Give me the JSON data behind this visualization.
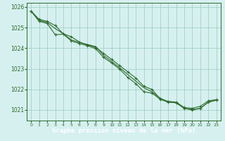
{
  "title": "Graphe pression niveau de la mer (hPa)",
  "bg_color": "#d6f0f0",
  "footer_bg": "#2d6b2d",
  "footer_text_color": "#ffffff",
  "grid_color": "#99ccbb",
  "line_color": "#2d6b2d",
  "marker_color": "#2d6b2d",
  "x_ticks": [
    0,
    1,
    2,
    3,
    4,
    5,
    6,
    7,
    8,
    9,
    10,
    11,
    12,
    13,
    14,
    15,
    16,
    17,
    18,
    19,
    20,
    21,
    22,
    23
  ],
  "ylim": [
    1020.5,
    1026.2
  ],
  "yticks": [
    1021,
    1022,
    1023,
    1024,
    1025,
    1026
  ],
  "line1": [
    1025.8,
    1025.4,
    1025.3,
    1025.1,
    1024.7,
    1024.55,
    1024.3,
    1024.15,
    1024.05,
    1023.75,
    1023.45,
    1023.15,
    1022.85,
    1022.55,
    1022.15,
    1022.0,
    1021.55,
    1021.42,
    1021.38,
    1021.12,
    1021.08,
    1021.18,
    1021.45,
    1021.5
  ],
  "line2": [
    1025.8,
    1025.35,
    1025.25,
    1024.95,
    1024.7,
    1024.4,
    1024.28,
    1024.18,
    1024.08,
    1023.65,
    1023.35,
    1023.05,
    1022.72,
    1022.4,
    1022.08,
    1021.88,
    1021.58,
    1021.38,
    1021.35,
    1021.08,
    1021.02,
    1021.08,
    1021.38,
    1021.48
  ],
  "line3": [
    1025.8,
    1025.3,
    1025.2,
    1024.65,
    1024.68,
    1024.35,
    1024.22,
    1024.12,
    1023.98,
    1023.55,
    1023.28,
    1022.98,
    1022.58,
    1022.28,
    1021.88,
    1021.82,
    1021.52,
    1021.38,
    1021.35,
    1021.08,
    1021.0,
    1021.08,
    1021.38,
    1021.48
  ]
}
